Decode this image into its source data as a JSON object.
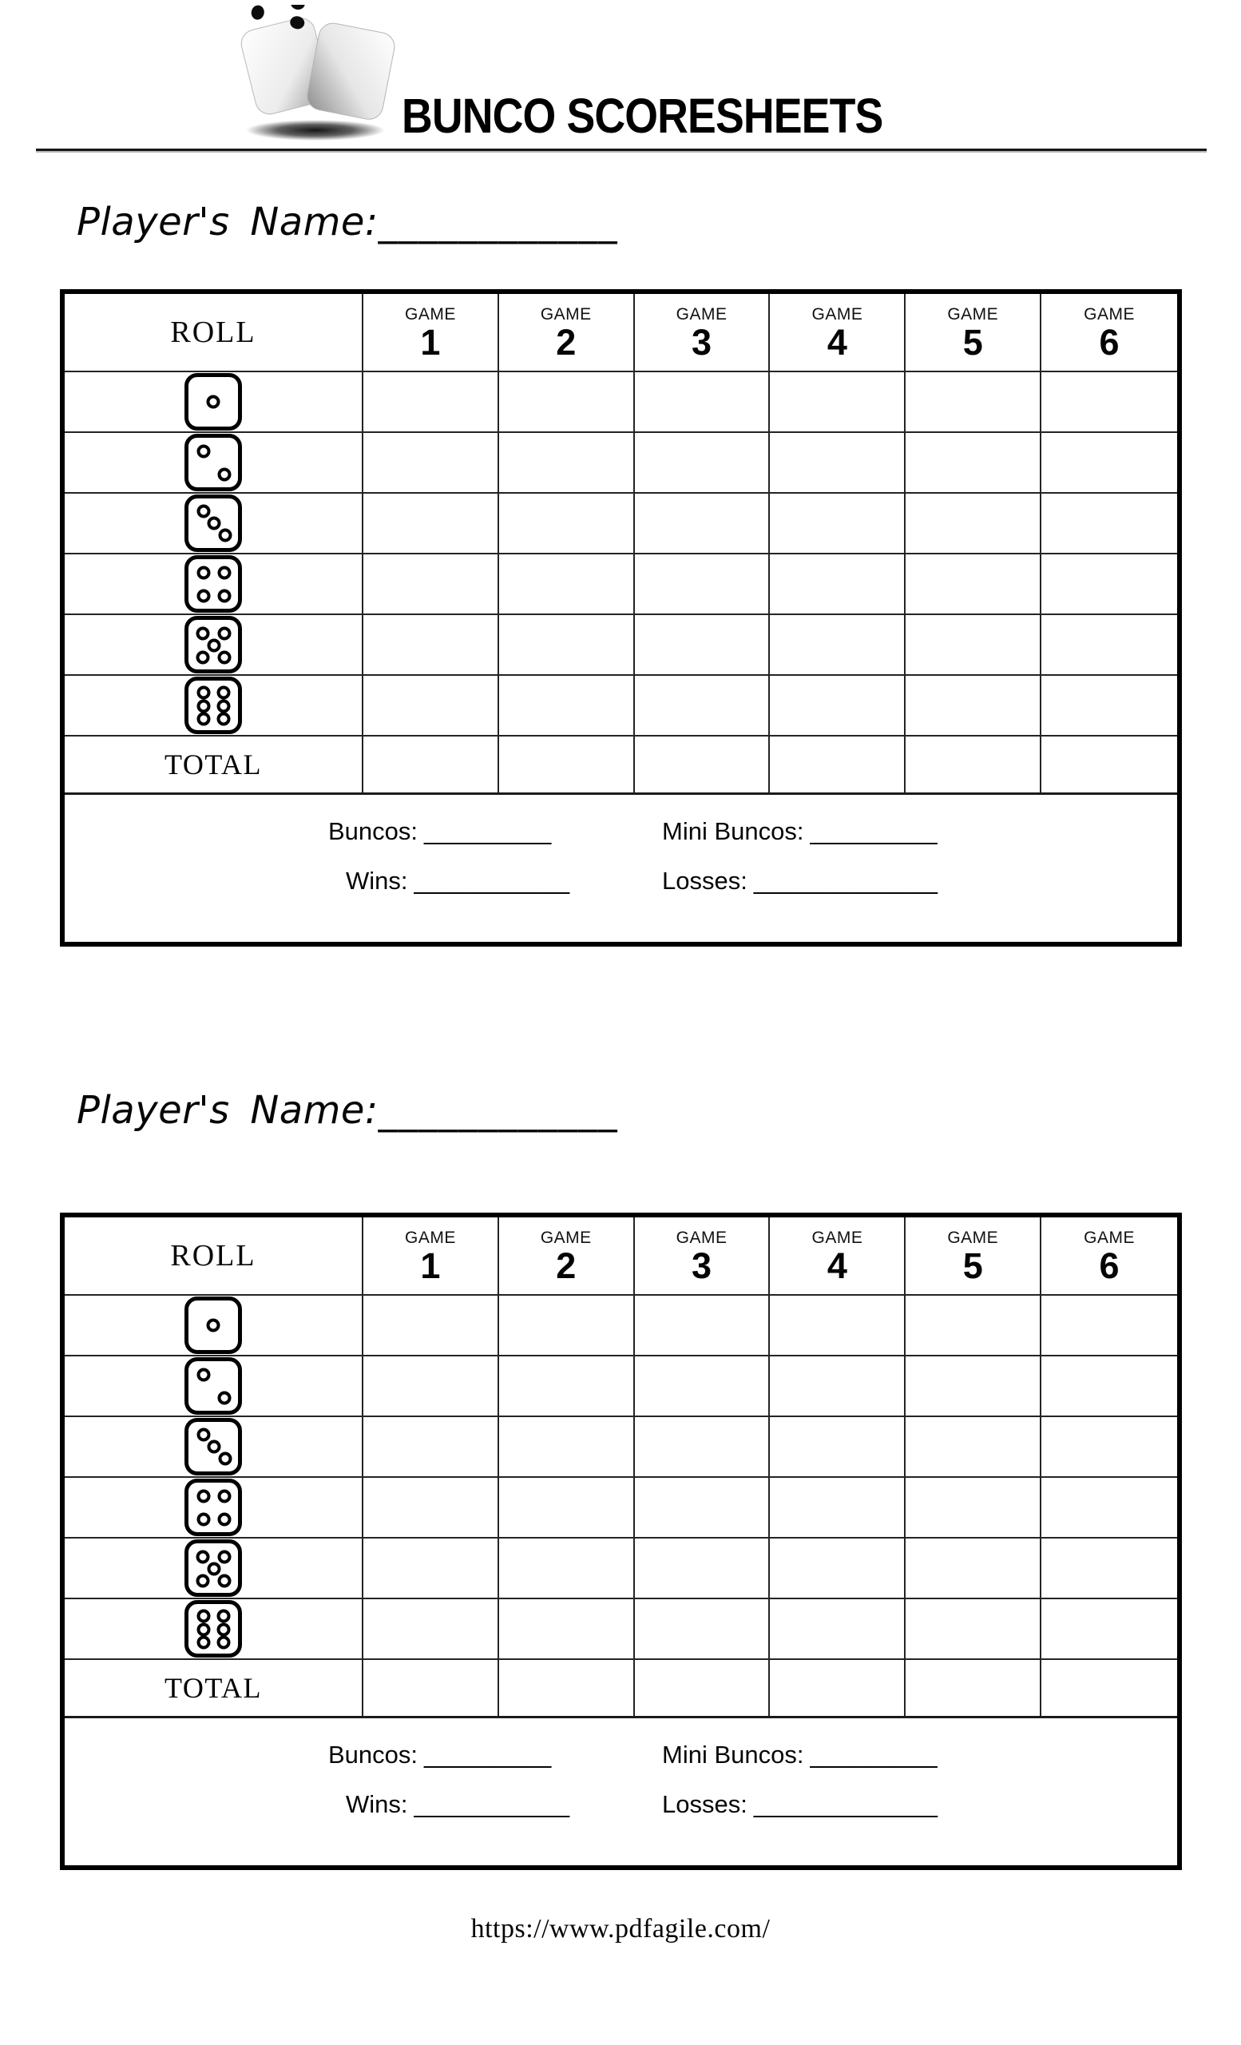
{
  "header": {
    "title": "BUNCO SCORESHEETS",
    "logo": "two-dice-logo"
  },
  "sheet": {
    "player_name_label": "Player's Name:",
    "player_name_blank": "____________",
    "table": {
      "roll_header": "ROLL",
      "game_label": "GAME",
      "game_numbers": [
        "1",
        "2",
        "3",
        "4",
        "5",
        "6"
      ],
      "rolls": [
        1,
        2,
        3,
        4,
        5,
        6
      ],
      "total_label": "TOTAL"
    },
    "stats": {
      "buncos_label": "Buncos:",
      "buncos_blank": "_________",
      "mini_buncos_label": "Mini Buncos:",
      "mini_buncos_blank": "_________",
      "wins_label": "Wins:",
      "wins_blank": "___________",
      "losses_label": "Losses:",
      "losses_blank": "_____________"
    }
  },
  "page": {
    "footer_url": "https://www.pdfagile.com/"
  },
  "colors": {
    "ink": "#000000",
    "grid_line": "#242424",
    "background": "#ffffff"
  }
}
